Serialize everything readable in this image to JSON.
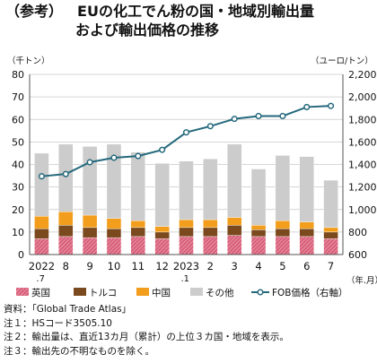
{
  "title": {
    "prefix": "（参考）",
    "line1": "EUの化工でん粉の国・地域別輸出量",
    "line2": "および輸出価格の推移"
  },
  "chart_data": {
    "type": "bar",
    "stacked": true,
    "categories": [
      "2022\n.7",
      "8",
      "9",
      "10",
      "11",
      "12",
      "2023\n.1",
      "2",
      "3",
      "4",
      "5",
      "6",
      "7"
    ],
    "xunit": "（年.月）",
    "y_left": {
      "label": "（千トン）",
      "min": 0,
      "max": 80,
      "ticks": [
        0,
        10,
        20,
        30,
        40,
        50,
        60,
        70,
        80
      ]
    },
    "y_right": {
      "label": "（ユーロ/トン）",
      "min": 600,
      "max": 2200,
      "ticks": [
        "600",
        "800",
        "1,000",
        "1,200",
        "1,400",
        "1,600",
        "1,800",
        "2,000",
        "2,200"
      ]
    },
    "series": [
      {
        "name": "英国",
        "color": "#d9607a",
        "pattern": "hatch",
        "values": [
          7,
          8,
          7.5,
          7.5,
          8,
          7,
          8,
          8,
          8.5,
          8,
          8,
          8,
          7
        ]
      },
      {
        "name": "トルコ",
        "color": "#7a4a1e",
        "values": [
          4.5,
          5,
          4.5,
          4,
          4,
          3,
          4,
          4,
          4.5,
          3,
          3.5,
          3.5,
          3
        ]
      },
      {
        "name": "中国",
        "color": "#f29d1c",
        "values": [
          5.5,
          6,
          5.5,
          4.5,
          3,
          2.5,
          3.5,
          3.5,
          3.5,
          2,
          3.5,
          3,
          2
        ]
      },
      {
        "name": "その他",
        "color": "#cccccc",
        "values": [
          28,
          30,
          30.5,
          33,
          30.5,
          28,
          26,
          27,
          32.5,
          25,
          29,
          29,
          21
        ]
      }
    ],
    "line": {
      "name": "FOB価格（右軸）",
      "color": "#24687c",
      "values": [
        1295,
        1315,
        1420,
        1460,
        1475,
        1530,
        1685,
        1740,
        1805,
        1830,
        1830,
        1910,
        1920
      ]
    },
    "grid": "horizontal",
    "legend_position": "bottom"
  },
  "notes": [
    "資料：「Global Trade Atlas」",
    "注１：HSコード3505.10",
    "注２：輸出量は、直近13カ月（累計）の上位３カ国・地域を表示。",
    "注３：輸出先の不明なものを除く。"
  ]
}
